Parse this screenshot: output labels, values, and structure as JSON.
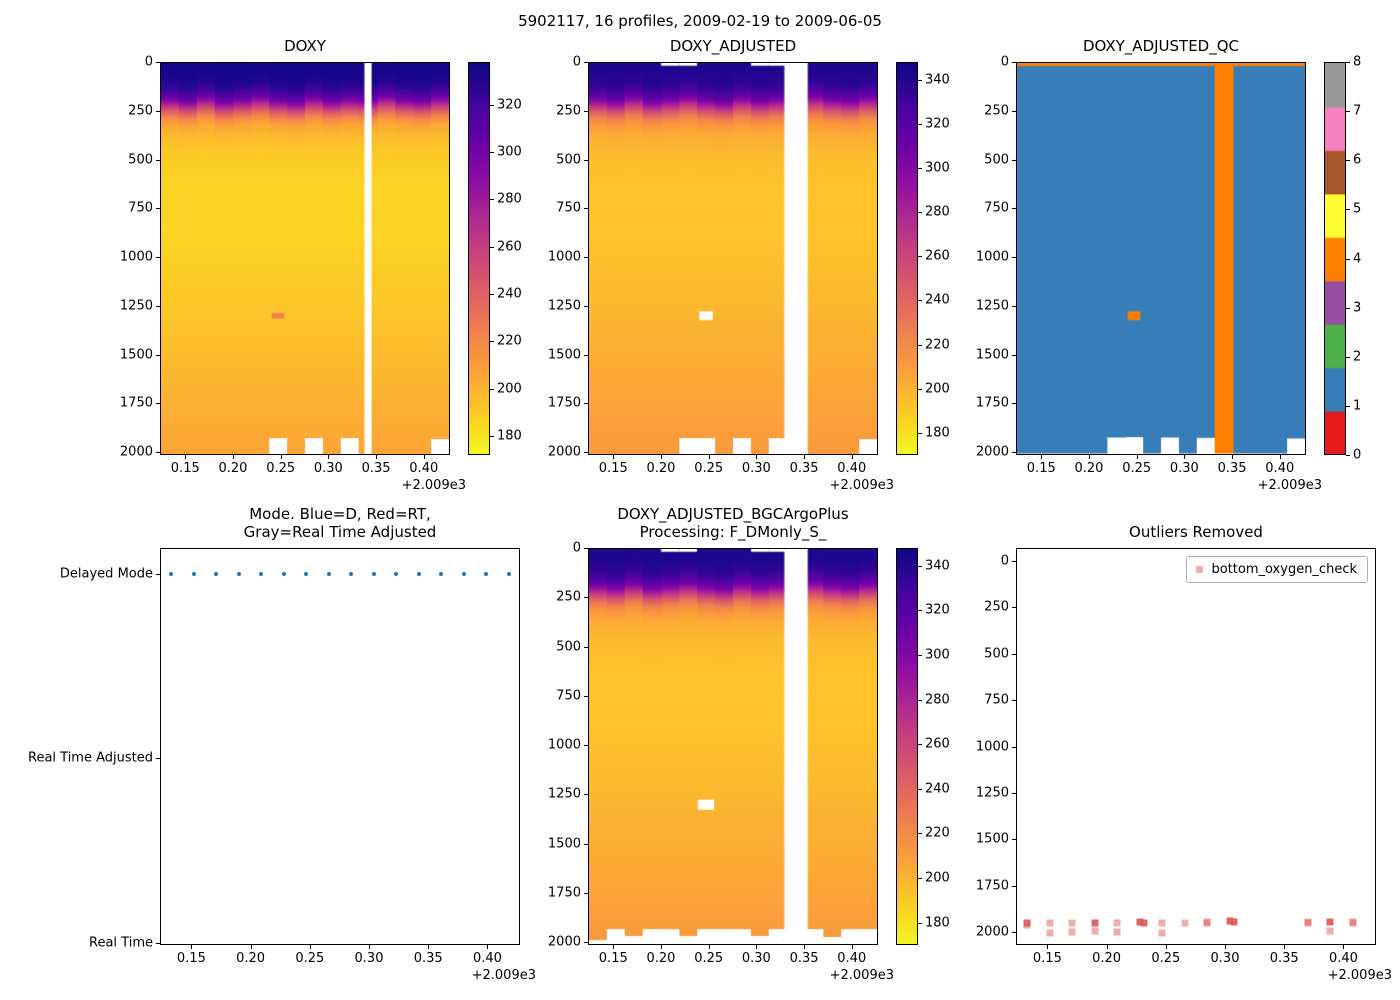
{
  "figure": {
    "suptitle": "5902117, 16 profiles, 2009-02-19 to 2009-06-05",
    "background": "#ffffff"
  },
  "chart_data": {
    "type": "heatmap-multi-panel",
    "x_axis": {
      "min": 2009.1235,
      "max": 2009.4275,
      "offset_label": "+2.009e3",
      "ticks": [
        {
          "v": 2009.15,
          "label": "0.15"
        },
        {
          "v": 2009.2,
          "label": "0.20"
        },
        {
          "v": 2009.25,
          "label": "0.25"
        },
        {
          "v": 2009.3,
          "label": "0.30"
        },
        {
          "v": 2009.35,
          "label": "0.35"
        },
        {
          "v": 2009.4,
          "label": "0.40"
        }
      ]
    },
    "depth_ticks": [
      0,
      250,
      500,
      750,
      1000,
      1250,
      1500,
      1750,
      2000
    ],
    "depth_axis_max": 2015,
    "profiles_x": [
      2009.133,
      2009.152,
      2009.171,
      2009.19,
      2009.209,
      2009.228,
      2009.247,
      2009.266,
      2009.285,
      2009.304,
      2009.323,
      2009.342,
      2009.361,
      2009.38,
      2009.399,
      2009.418
    ],
    "profile_spacing": 0.019,
    "top_shifts": [
      0,
      18,
      -12,
      22,
      6,
      -14,
      12,
      26,
      -6,
      16,
      2,
      10,
      -18,
      6,
      16,
      -8
    ],
    "oxygen_profile": [
      [
        0,
        337
      ],
      [
        70,
        334
      ],
      [
        110,
        329
      ],
      [
        150,
        317
      ],
      [
        185,
        298
      ],
      [
        215,
        270
      ],
      [
        245,
        243
      ],
      [
        275,
        222
      ],
      [
        310,
        207
      ],
      [
        370,
        197
      ],
      [
        450,
        191
      ],
      [
        600,
        187
      ],
      [
        850,
        186
      ],
      [
        1200,
        191
      ],
      [
        1600,
        198
      ],
      [
        2015,
        206
      ]
    ],
    "colormap_plasma": [
      "#0d0887",
      "#41049d",
      "#6a00a8",
      "#8f0da4",
      "#b12a90",
      "#cc4778",
      "#e16462",
      "#f2844b",
      "#fca636",
      "#fcce25",
      "#f0f921"
    ],
    "qc_colors": [
      "#e41a1c",
      "#377eb8",
      "#4daf4a",
      "#984ea3",
      "#ff7f00",
      "#ffff33",
      "#a65628",
      "#f781bf",
      "#999999"
    ],
    "panels": {
      "doxy": {
        "title": "DOXY",
        "vmin": 172,
        "vmax": 338,
        "value_offset": 0,
        "default_max_depth": 2012,
        "max_depth_overrides": {
          "6": 1930,
          "8": 1928,
          "10": 1932,
          "15": 1935
        },
        "missing": [
          {
            "i": 11,
            "wf": 0.4
          }
        ],
        "tint_cells": [
          {
            "i": 6,
            "d0": 1288,
            "d1": 1316,
            "wf": 0.7,
            "value": 222
          }
        ],
        "colorbar_ticks": [
          320,
          300,
          280,
          260,
          240,
          220,
          200,
          180
        ]
      },
      "adjusted": {
        "title": "DOXY_ADJUSTED",
        "vmin": 170,
        "vmax": 348,
        "value_offset": 6,
        "default_max_depth": 2012,
        "max_depth_overrides": {
          "5": 1930,
          "6": 1928,
          "8": 1930,
          "10": 1932,
          "15": 1935
        },
        "missing": [
          {
            "i": 11,
            "wf": 1.3
          }
        ],
        "white_cells": [
          {
            "i": 6,
            "d0": 1280,
            "d1": 1325,
            "wf": 0.75
          },
          {
            "i": 4,
            "d0": 0,
            "d1": 14,
            "wf": 1
          },
          {
            "i": 5,
            "d0": 0,
            "d1": 14,
            "wf": 1
          },
          {
            "i": 9,
            "d0": 0,
            "d1": 14,
            "wf": 1
          },
          {
            "i": 10,
            "d0": 0,
            "d1": 14,
            "wf": 1
          }
        ],
        "colorbar_ticks": [
          340,
          320,
          300,
          280,
          260,
          240,
          220,
          200,
          180
        ]
      },
      "qc": {
        "title": "DOXY_ADJUSTED_QC",
        "default_qc": 1,
        "default_max_depth": 2012,
        "max_depth_overrides": {
          "5": 1930,
          "6": 1928,
          "8": 1930,
          "10": 1932,
          "15": 1935
        },
        "column_qc": {
          "11": 4
        },
        "top_band": {
          "depth": 16,
          "qc": 4
        },
        "qc_cells": [
          {
            "i": 6,
            "d0": 1280,
            "d1": 1325,
            "wf": 0.7,
            "qc": 4
          }
        ],
        "colorbar_ticks": [
          8,
          7,
          6,
          5,
          4,
          3,
          2,
          1,
          0
        ]
      },
      "mode": {
        "title": "Mode. Blue=D, Red=RT,\nGray=Real Time Adjusted",
        "categories": [
          "Delayed Mode",
          "Real Time Adjusted",
          "Real Time"
        ],
        "cat_fracs": [
          0.065,
          0.53,
          0.995
        ],
        "dot_color": "#1f77b4",
        "dot_category_index": 0
      },
      "bgc": {
        "title": "DOXY_ADJUSTED_BGCArgoPlus\nProcessing: F_DMonly_S_",
        "vmin": 170,
        "vmax": 348,
        "value_offset": 6,
        "default_max_depth": 1938,
        "max_depth_overrides": {
          "0": 1992,
          "2": 1972,
          "5": 1974,
          "9": 1970,
          "13": 1976
        },
        "missing": [
          {
            "i": 11,
            "wf": 1.3
          }
        ],
        "white_cells": [
          {
            "i": 6,
            "d0": 1278,
            "d1": 1330,
            "wf": 0.9
          },
          {
            "i": 4,
            "d0": 0,
            "d1": 14,
            "wf": 1
          },
          {
            "i": 5,
            "d0": 0,
            "d1": 14,
            "wf": 1
          },
          {
            "i": 9,
            "d0": 0,
            "d1": 14,
            "wf": 1
          },
          {
            "i": 10,
            "d0": 0,
            "d1": 14,
            "wf": 1
          }
        ],
        "colorbar_ticks": [
          340,
          320,
          300,
          280,
          260,
          240,
          220,
          200,
          180
        ]
      },
      "outliers": {
        "title": "Outliers Removed",
        "legend_label": "bottom_oxygen_check",
        "marker_color": "#d9605c",
        "y_min": -70,
        "y_max": 2070,
        "points": [
          {
            "x": 2009.133,
            "d": 1952,
            "dark": true
          },
          {
            "x": 2009.133,
            "d": 1962,
            "dark": false
          },
          {
            "x": 2009.152,
            "d": 1950,
            "dark": false
          },
          {
            "x": 2009.152,
            "d": 2004,
            "dark": false
          },
          {
            "x": 2009.171,
            "d": 1954,
            "dark": false
          },
          {
            "x": 2009.171,
            "d": 2000,
            "dark": false
          },
          {
            "x": 2009.19,
            "d": 1950,
            "dark": true
          },
          {
            "x": 2009.19,
            "d": 1996,
            "dark": false
          },
          {
            "x": 2009.209,
            "d": 1950,
            "dark": false
          },
          {
            "x": 2009.209,
            "d": 2000,
            "dark": false
          },
          {
            "x": 2009.228,
            "d": 1944,
            "dark": true
          },
          {
            "x": 2009.232,
            "d": 1952,
            "dark": true
          },
          {
            "x": 2009.247,
            "d": 1950,
            "dark": false
          },
          {
            "x": 2009.247,
            "d": 2004,
            "dark": false
          },
          {
            "x": 2009.266,
            "d": 1950,
            "dark": false
          },
          {
            "x": 2009.285,
            "d": 1944,
            "dark": false
          },
          {
            "x": 2009.285,
            "d": 1952,
            "dark": false
          },
          {
            "x": 2009.304,
            "d": 1940,
            "dark": true
          },
          {
            "x": 2009.308,
            "d": 1948,
            "dark": true
          },
          {
            "x": 2009.37,
            "d": 1944,
            "dark": false
          },
          {
            "x": 2009.37,
            "d": 1952,
            "dark": false
          },
          {
            "x": 2009.389,
            "d": 1944,
            "dark": true
          },
          {
            "x": 2009.389,
            "d": 1996,
            "dark": false
          },
          {
            "x": 2009.408,
            "d": 1944,
            "dark": false
          },
          {
            "x": 2009.408,
            "d": 1952,
            "dark": false
          }
        ]
      }
    }
  }
}
